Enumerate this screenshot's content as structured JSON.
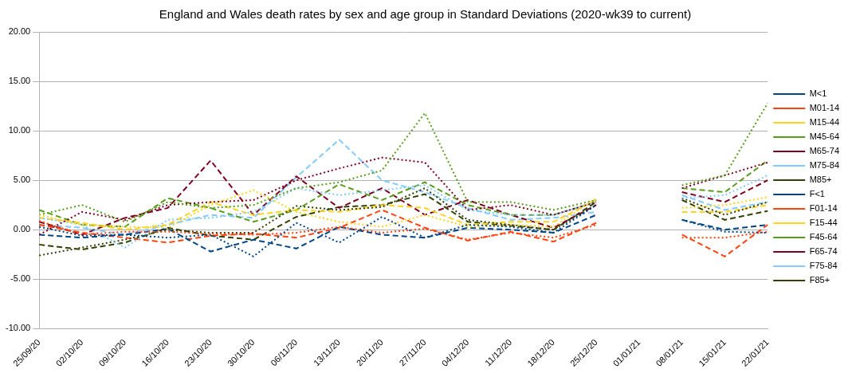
{
  "chart_data": {
    "type": "line",
    "title": "England and Wales death rates by sex and age group in Standard Deviations (2020-wk39 to current)",
    "categories": [
      "25/09/20",
      "02/10/20",
      "09/10/20",
      "16/10/20",
      "23/10/20",
      "30/10/20",
      "06/11/20",
      "13/11/20",
      "20/11/20",
      "27/11/20",
      "04/12/20",
      "11/12/20",
      "18/12/20",
      "25/12/20",
      "01/01/21",
      "08/01/21",
      "15/01/21",
      "22/01/21"
    ],
    "ylim": [
      -10,
      20
    ],
    "yticks": [
      {
        "value": -10,
        "label": "-10.00"
      },
      {
        "value": -5,
        "label": "-5.00"
      },
      {
        "value": 0,
        "label": "0.00"
      },
      {
        "value": 5,
        "label": "5.00"
      },
      {
        "value": 10,
        "label": "10.00"
      },
      {
        "value": 15,
        "label": "15.00"
      },
      {
        "value": 20,
        "label": "20.00"
      }
    ],
    "grid": true,
    "legend": "right",
    "marker": "none",
    "series": [
      {
        "name": "M<1",
        "color": "#004586",
        "line_style": "dotted",
        "values": [
          0.3,
          -0.6,
          -0.5,
          -0.8,
          -0.5,
          -2.7,
          0.7,
          -1.3,
          1.3,
          -0.8,
          0.5,
          0.3,
          -0.3,
          2.5,
          null,
          1.0,
          -0.2,
          -0.3
        ]
      },
      {
        "name": "M01-14",
        "color": "#ff420e",
        "line_style": "dotted",
        "values": [
          0.9,
          -0.5,
          -0.2,
          -0.2,
          -0.4,
          -0.5,
          -0.3,
          0.3,
          -0.3,
          0.1,
          -1.0,
          -0.3,
          -0.8,
          0.5,
          null,
          -0.8,
          -0.8,
          -0.2
        ]
      },
      {
        "name": "M15-44",
        "color": "#ffd320",
        "line_style": "dotted",
        "values": [
          1.5,
          0.5,
          0.3,
          0.2,
          2.5,
          4.0,
          1.8,
          0.8,
          0.3,
          1.5,
          0.3,
          0.5,
          0.3,
          3.2,
          null,
          2.2,
          2.5,
          3.3
        ]
      },
      {
        "name": "M45-64",
        "color": "#579d1c",
        "line_style": "dotted",
        "values": [
          1.5,
          2.5,
          0.8,
          2.8,
          2.2,
          2.5,
          4.2,
          4.8,
          6.0,
          11.8,
          2.8,
          2.8,
          2.0,
          3.0,
          null,
          4.5,
          5.5,
          12.8
        ]
      },
      {
        "name": "M65-74",
        "color": "#7e0021",
        "line_style": "dotted",
        "values": [
          -0.5,
          1.8,
          1.0,
          2.5,
          2.8,
          3.0,
          5.0,
          6.2,
          7.3,
          6.8,
          2.0,
          2.5,
          1.5,
          2.8,
          null,
          4.2,
          5.5,
          6.8
        ]
      },
      {
        "name": "M75-84",
        "color": "#83caff",
        "line_style": "dotted",
        "values": [
          1.2,
          0.5,
          -1.8,
          1.0,
          1.2,
          1.8,
          4.2,
          3.5,
          4.0,
          4.5,
          2.0,
          1.5,
          1.5,
          2.8,
          null,
          3.2,
          3.5,
          5.5
        ]
      },
      {
        "name": "M85+",
        "color": "#314004",
        "line_style": "dotted",
        "values": [
          -2.6,
          -1.8,
          -1.0,
          0.0,
          -0.3,
          -0.3,
          2.4,
          2.0,
          2.3,
          4.2,
          1.0,
          0.5,
          0.0,
          2.5,
          null,
          3.2,
          1.5,
          2.8
        ]
      },
      {
        "name": "F<1",
        "color": "#004586",
        "line_style": "dashed",
        "values": [
          -0.5,
          -0.8,
          -0.5,
          0.1,
          -2.2,
          -1.0,
          -1.9,
          0.3,
          -0.5,
          -0.8,
          0.2,
          0.0,
          -0.3,
          1.5,
          null,
          1.0,
          0.0,
          0.5
        ]
      },
      {
        "name": "F01-14",
        "color": "#ff420e",
        "line_style": "dashed",
        "values": [
          0.5,
          -0.3,
          -0.8,
          -1.3,
          -0.6,
          -0.4,
          -0.8,
          0.2,
          2.0,
          0.2,
          -1.1,
          -0.2,
          -1.2,
          0.7,
          null,
          -0.5,
          -2.7,
          0.5
        ]
      },
      {
        "name": "F15-44",
        "color": "#ffd320",
        "line_style": "dashed",
        "values": [
          1.2,
          0.7,
          0.0,
          0.5,
          2.8,
          1.5,
          2.0,
          1.8,
          2.5,
          2.2,
          0.5,
          0.8,
          0.8,
          3.0,
          null,
          1.8,
          1.8,
          2.5
        ]
      },
      {
        "name": "F45-64",
        "color": "#579d1c",
        "line_style": "dashed",
        "values": [
          2.0,
          0.5,
          0.3,
          3.2,
          2.2,
          0.8,
          2.0,
          4.6,
          3.0,
          4.8,
          2.5,
          1.5,
          1.5,
          2.8,
          null,
          4.2,
          3.8,
          7.0
        ]
      },
      {
        "name": "F65-74",
        "color": "#7e0021",
        "line_style": "dashed",
        "values": [
          0.8,
          -0.5,
          1.2,
          2.2,
          7.0,
          1.5,
          5.4,
          2.2,
          4.2,
          1.5,
          3.0,
          1.5,
          0.2,
          2.5,
          null,
          3.8,
          2.8,
          5.0
        ]
      },
      {
        "name": "F75-84",
        "color": "#83caff",
        "line_style": "dashed",
        "values": [
          0.5,
          0.2,
          -0.5,
          0.5,
          1.5,
          1.2,
          5.3,
          9.1,
          5.0,
          3.8,
          2.2,
          1.0,
          1.2,
          1.8,
          null,
          3.5,
          2.0,
          2.8
        ]
      },
      {
        "name": "F85+",
        "color": "#314004",
        "line_style": "dashed",
        "values": [
          -1.5,
          -2.0,
          -1.3,
          0.2,
          -0.6,
          -1.0,
          1.3,
          2.3,
          2.5,
          3.6,
          0.8,
          0.4,
          0.0,
          2.8,
          null,
          3.0,
          1.0,
          1.9
        ]
      }
    ]
  }
}
